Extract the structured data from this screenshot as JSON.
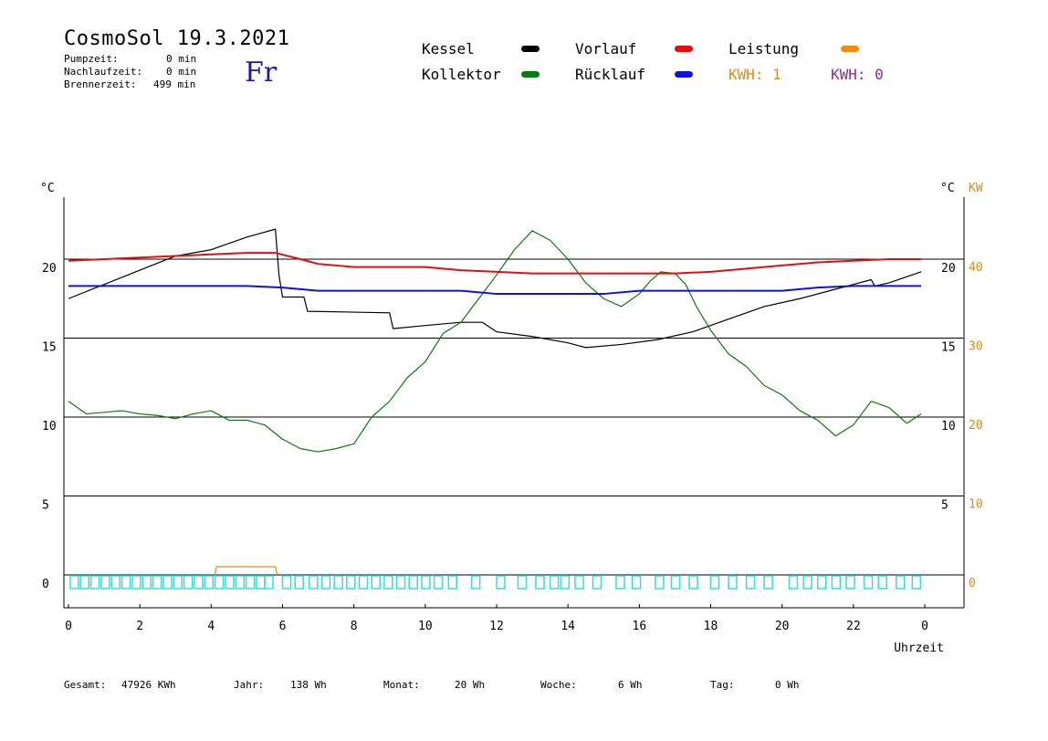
{
  "header": {
    "title": "CosmoSol 19.3.2021",
    "pumpzeit_label": "Pumpzeit:",
    "pumpzeit_value": "0 min",
    "nachlaufzeit_label": "Nachlaufzeit:",
    "nachlaufzeit_value": "0 min",
    "brennerzeit_label": "Brennerzeit:",
    "brennerzeit_value": "499 min",
    "day": "Fr"
  },
  "legend": {
    "kessel": "Kessel",
    "kollektor": "Kollektor",
    "vorlauf": "Vorlauf",
    "ruecklauf": "Rücklauf",
    "leistung": "Leistung",
    "kwh1": "KWH: 1",
    "kwh0": "KWH: 0"
  },
  "footer": {
    "gesamt_label": "Gesamt:",
    "gesamt_value": "47926 KWh",
    "jahr_label": "Jahr:",
    "jahr_value": "138 Wh",
    "monat_label": "Monat:",
    "monat_value": "20 Wh",
    "woche_label": "Woche:",
    "woche_value": "6 Wh",
    "tag_label": "Tag:",
    "tag_value": "0 Wh"
  },
  "colors": {
    "kessel": "#000000",
    "kollektor": "#0a7a0a",
    "vorlauf": "#e01010",
    "ruecklauf": "#1010e0",
    "leistung": "#f08a10",
    "pump": "#33dddd",
    "kw_axis": "#d48a1a"
  },
  "chart_data": {
    "type": "line",
    "xlabel": "Uhrzeit",
    "xlim": [
      0,
      24
    ],
    "x_ticks": [
      "0",
      "2",
      "4",
      "6",
      "8",
      "10",
      "12",
      "14",
      "16",
      "18",
      "20",
      "22",
      "0"
    ],
    "ylabel_left": "°C",
    "ylabel_right": "°C",
    "ylabel_kw": "KW",
    "ylim": [
      -2,
      24
    ],
    "y_ticks_left": [
      "0",
      "5",
      "10",
      "15",
      "20"
    ],
    "y_ticks_right": [
      "5",
      "10",
      "15",
      "20"
    ],
    "y_ticks_kw": [
      "0",
      "10",
      "20",
      "30",
      "40"
    ],
    "series": [
      {
        "name": "Kessel",
        "x": [
          0,
          1,
          2,
          3,
          4,
          5,
          5.8,
          5.9,
          6.0,
          6.6,
          6.7,
          9.0,
          9.1,
          10.0,
          11.0,
          11.6,
          12.0,
          13.0,
          14.0,
          14.5,
          15.5,
          16.5,
          17.5,
          18.5,
          19.5,
          20.5,
          21.5,
          22.0,
          22.5,
          22.6,
          23.0,
          23.9
        ],
        "values": [
          17.5,
          18.4,
          19.3,
          20.2,
          20.6,
          21.4,
          21.9,
          19.0,
          17.6,
          17.6,
          16.7,
          16.6,
          15.6,
          15.8,
          16.0,
          16.0,
          15.4,
          15.1,
          14.7,
          14.4,
          14.6,
          14.9,
          15.4,
          16.2,
          17.0,
          17.5,
          18.1,
          18.4,
          18.7,
          18.3,
          18.5,
          19.2
        ]
      },
      {
        "name": "Kollektor",
        "x": [
          0,
          0.5,
          1,
          1.5,
          2,
          2.5,
          3,
          3.5,
          4,
          4.5,
          5,
          5.5,
          6,
          6.5,
          7,
          7.5,
          8,
          8.5,
          9,
          9.5,
          10,
          10.5,
          11,
          11.5,
          12,
          12.5,
          13,
          13.5,
          14,
          14.5,
          15,
          15.5,
          16,
          16.3,
          16.6,
          17,
          17.3,
          17.6,
          18,
          18.5,
          19,
          19.5,
          20,
          20.5,
          21,
          21.5,
          22,
          22.5,
          23,
          23.5,
          23.9
        ],
        "values": [
          11,
          10.2,
          10.3,
          10.4,
          10.2,
          10.1,
          9.9,
          10.2,
          10.4,
          9.8,
          9.8,
          9.5,
          8.6,
          8.0,
          7.8,
          8.0,
          8.3,
          10.0,
          11.0,
          12.5,
          13.5,
          15.3,
          16.0,
          17.5,
          19.0,
          20.6,
          21.8,
          21.2,
          20.0,
          18.5,
          17.5,
          17.0,
          17.8,
          18.6,
          19.2,
          19.1,
          18.4,
          17.0,
          15.5,
          14.0,
          13.2,
          12.0,
          11.4,
          10.4,
          9.8,
          8.8,
          9.5,
          11.0,
          10.6,
          9.6,
          10.2
        ]
      },
      {
        "name": "Vorlauf",
        "x": [
          0,
          1,
          2,
          3,
          4,
          5,
          5.8,
          6.5,
          7,
          8,
          9,
          10,
          11,
          12,
          13,
          14,
          15,
          16,
          17,
          18,
          19,
          20,
          21,
          22,
          23,
          23.9
        ],
        "values": [
          19.9,
          20.0,
          20.1,
          20.2,
          20.3,
          20.4,
          20.4,
          20.0,
          19.7,
          19.5,
          19.5,
          19.5,
          19.3,
          19.2,
          19.1,
          19.1,
          19.1,
          19.1,
          19.1,
          19.2,
          19.4,
          19.6,
          19.8,
          19.9,
          20.0,
          20.0
        ]
      },
      {
        "name": "Rücklauf",
        "x": [
          0,
          1,
          2,
          3,
          4,
          5,
          6,
          7,
          8,
          9,
          10,
          11,
          12,
          13,
          14,
          15,
          16,
          17,
          18,
          19,
          20,
          21,
          22,
          23,
          23.9
        ],
        "values": [
          18.3,
          18.3,
          18.3,
          18.3,
          18.3,
          18.3,
          18.2,
          18.0,
          18.0,
          18.0,
          18.0,
          18.0,
          17.8,
          17.8,
          17.8,
          17.8,
          18.0,
          18.0,
          18.0,
          18.0,
          18.0,
          18.2,
          18.3,
          18.3,
          18.3
        ]
      },
      {
        "name": "Leistung",
        "unit": "KW",
        "x": [
          4.1,
          4.15,
          5.8,
          5.85
        ],
        "values": [
          0,
          1.0,
          1.0,
          0
        ]
      }
    ]
  }
}
